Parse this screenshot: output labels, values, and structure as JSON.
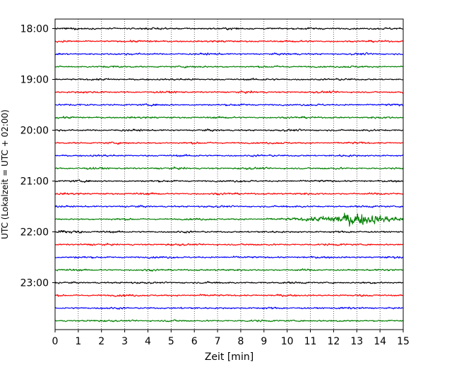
{
  "chart_data": {
    "type": "line",
    "title": "",
    "xlabel": "Zeit  [min]",
    "ylabel": "UTC (Lokalzeit = UTC + 02:00)",
    "xlim": [
      0,
      15
    ],
    "x_ticks": [
      "0",
      "1",
      "2",
      "3",
      "4",
      "5",
      "6",
      "7",
      "8",
      "9",
      "10",
      "11",
      "12",
      "13",
      "14",
      "15"
    ],
    "y_tick_labels": [
      "18:00",
      "19:00",
      "20:00",
      "21:00",
      "22:00",
      "23:00"
    ],
    "grid": "vertical dotted at each minute",
    "trace_interval_minutes": 15,
    "trace_colors": [
      "#000000",
      "#ff0000",
      "#0000ff",
      "#008000"
    ],
    "trace_start_times": [
      "18:00",
      "18:15",
      "18:30",
      "18:45",
      "19:00",
      "19:15",
      "19:30",
      "19:45",
      "20:00",
      "20:15",
      "20:30",
      "20:45",
      "21:00",
      "21:15",
      "21:30",
      "21:45",
      "22:00",
      "22:15",
      "22:30",
      "22:45",
      "23:00",
      "23:15",
      "23:30",
      "23:45"
    ],
    "events": [
      {
        "trace": "21:45",
        "start_min": 9.5,
        "end_min": 15,
        "peak_min": 12.8,
        "relative_amplitude": 8
      },
      {
        "trace": "22:00",
        "start_min": 0,
        "end_min": 1.2,
        "peak_min": 0.3,
        "relative_amplitude": 2.5
      }
    ]
  }
}
